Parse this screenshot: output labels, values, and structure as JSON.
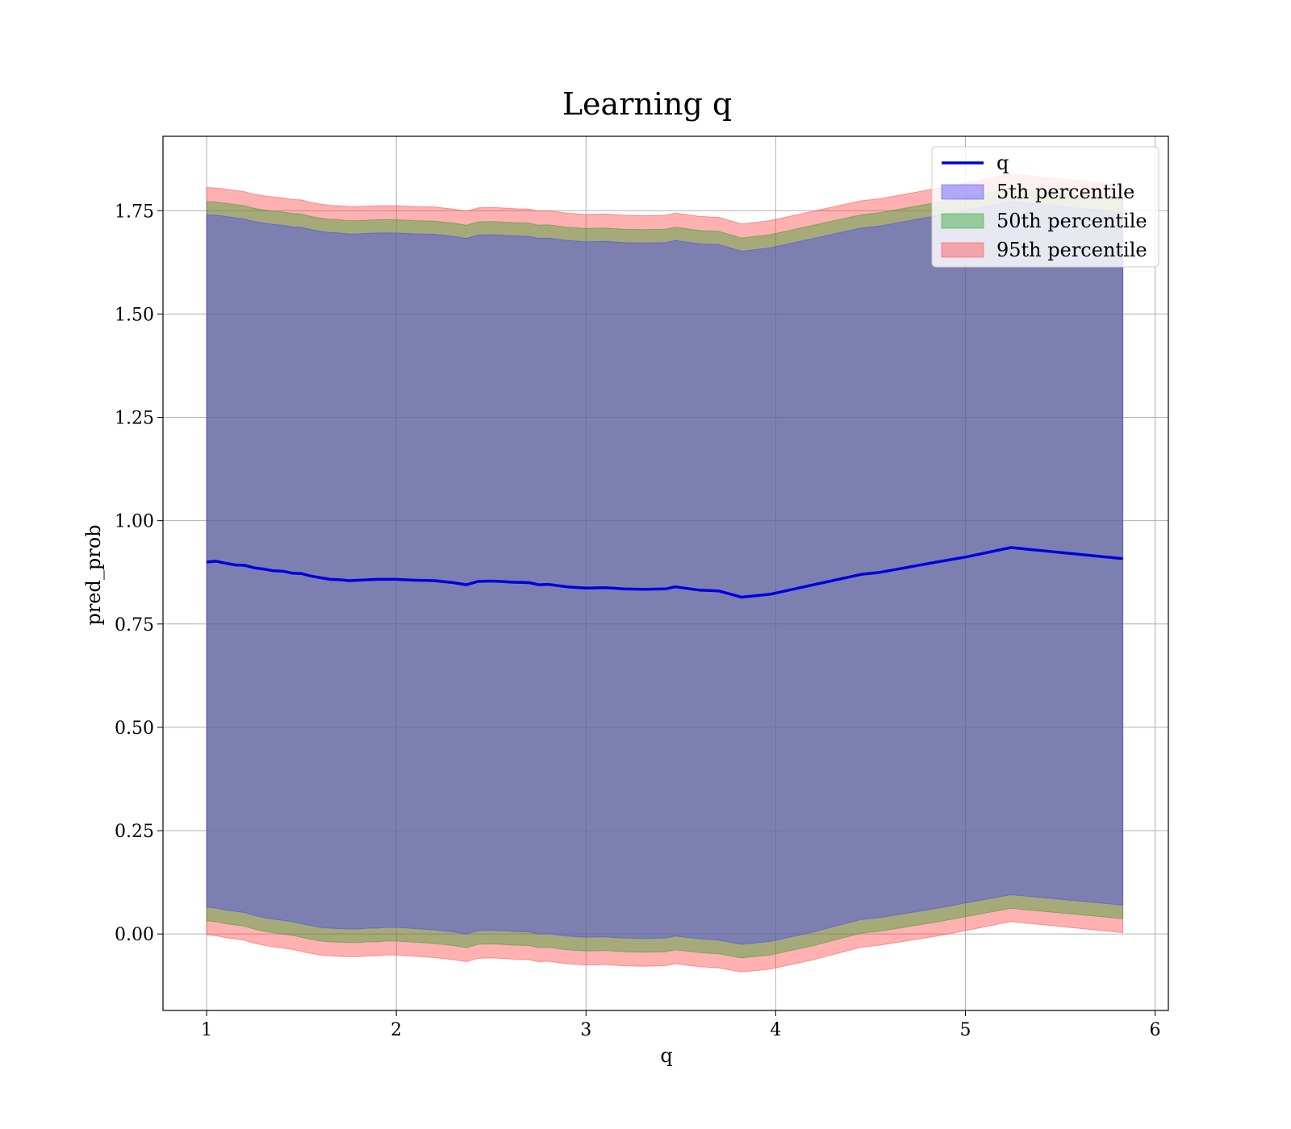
{
  "chart_data": {
    "type": "line",
    "title": "Learning q",
    "xlabel": "q",
    "ylabel": "pred_prob",
    "xlim": [
      0.77,
      6.07
    ],
    "ylim": [
      -0.185,
      1.93
    ],
    "xticks": [
      1,
      2,
      3,
      4,
      5,
      6
    ],
    "yticks": [
      0.0,
      0.25,
      0.5,
      0.75,
      1.0,
      1.25,
      1.5,
      1.75
    ],
    "xtick_labels": [
      "1",
      "2",
      "3",
      "4",
      "5",
      "6"
    ],
    "ytick_labels": [
      "0.00",
      "0.25",
      "0.50",
      "0.75",
      "1.00",
      "1.25",
      "1.50",
      "1.75"
    ],
    "grid": true,
    "legend_position": "top-right",
    "x": [
      1.0,
      1.05,
      1.1,
      1.15,
      1.2,
      1.25,
      1.3,
      1.35,
      1.4,
      1.45,
      1.5,
      1.55,
      1.6,
      1.65,
      1.7,
      1.75,
      1.8,
      1.85,
      1.9,
      1.95,
      2.0,
      2.1,
      2.2,
      2.3,
      2.37,
      2.43,
      2.5,
      2.55,
      2.62,
      2.7,
      2.75,
      2.8,
      2.9,
      3.0,
      3.1,
      3.2,
      3.3,
      3.42,
      3.47,
      3.6,
      3.7,
      3.82,
      3.97,
      4.2,
      4.45,
      4.55,
      4.85,
      5.0,
      5.24,
      5.83
    ],
    "series": [
      {
        "name": "q",
        "kind": "line",
        "color": "#0000dd",
        "values": [
          0.9,
          0.902,
          0.897,
          0.893,
          0.892,
          0.886,
          0.883,
          0.879,
          0.878,
          0.873,
          0.872,
          0.866,
          0.862,
          0.858,
          0.857,
          0.855,
          0.856,
          0.857,
          0.858,
          0.858,
          0.858,
          0.856,
          0.855,
          0.85,
          0.845,
          0.853,
          0.854,
          0.853,
          0.851,
          0.85,
          0.845,
          0.846,
          0.84,
          0.837,
          0.838,
          0.835,
          0.834,
          0.835,
          0.84,
          0.832,
          0.83,
          0.815,
          0.822,
          0.845,
          0.87,
          0.875,
          0.9,
          0.912,
          0.935,
          0.908
        ]
      },
      {
        "name": "5th percentile",
        "kind": "band",
        "color": "#4444ff",
        "lower": [
          0.065,
          0.063,
          0.058,
          0.055,
          0.052,
          0.045,
          0.04,
          0.036,
          0.033,
          0.03,
          0.025,
          0.02,
          0.016,
          0.014,
          0.013,
          0.012,
          0.012,
          0.014,
          0.014,
          0.016,
          0.016,
          0.013,
          0.01,
          0.005,
          0.0,
          0.008,
          0.009,
          0.008,
          0.006,
          0.005,
          0.0,
          0.001,
          -0.005,
          -0.008,
          -0.007,
          -0.01,
          -0.011,
          -0.01,
          -0.005,
          -0.012,
          -0.015,
          -0.025,
          -0.018,
          0.005,
          0.035,
          0.04,
          0.062,
          0.075,
          0.095,
          0.07
        ],
        "upper": [
          1.74,
          1.739,
          1.736,
          1.733,
          1.73,
          1.724,
          1.72,
          1.717,
          1.715,
          1.711,
          1.71,
          1.704,
          1.7,
          1.697,
          1.696,
          1.694,
          1.694,
          1.695,
          1.696,
          1.696,
          1.696,
          1.694,
          1.693,
          1.688,
          1.683,
          1.691,
          1.692,
          1.691,
          1.689,
          1.688,
          1.683,
          1.684,
          1.678,
          1.675,
          1.676,
          1.673,
          1.672,
          1.673,
          1.678,
          1.67,
          1.668,
          1.652,
          1.66,
          1.683,
          1.708,
          1.713,
          1.738,
          1.75,
          1.773,
          1.745
        ]
      },
      {
        "name": "50th percentile",
        "kind": "band",
        "color": "#2ca02c",
        "lower": [
          0.032,
          0.03,
          0.025,
          0.022,
          0.019,
          0.012,
          0.007,
          0.003,
          0.0,
          -0.003,
          -0.008,
          -0.013,
          -0.017,
          -0.019,
          -0.02,
          -0.021,
          -0.021,
          -0.019,
          -0.019,
          -0.017,
          -0.017,
          -0.02,
          -0.023,
          -0.028,
          -0.033,
          -0.025,
          -0.024,
          -0.025,
          -0.027,
          -0.028,
          -0.033,
          -0.032,
          -0.038,
          -0.041,
          -0.04,
          -0.043,
          -0.044,
          -0.043,
          -0.038,
          -0.045,
          -0.048,
          -0.058,
          -0.051,
          -0.028,
          0.002,
          0.007,
          0.029,
          0.042,
          0.062,
          0.037
        ],
        "upper": [
          1.772,
          1.771,
          1.768,
          1.765,
          1.762,
          1.756,
          1.752,
          1.749,
          1.747,
          1.743,
          1.742,
          1.736,
          1.732,
          1.729,
          1.728,
          1.726,
          1.726,
          1.727,
          1.728,
          1.728,
          1.728,
          1.726,
          1.725,
          1.72,
          1.715,
          1.723,
          1.724,
          1.723,
          1.721,
          1.72,
          1.715,
          1.716,
          1.71,
          1.707,
          1.708,
          1.705,
          1.704,
          1.705,
          1.71,
          1.702,
          1.7,
          1.684,
          1.692,
          1.715,
          1.74,
          1.745,
          1.77,
          1.782,
          1.805,
          1.777
        ]
      },
      {
        "name": "95th percentile",
        "kind": "band",
        "color": "#ff4444",
        "lower": [
          -0.002,
          -0.004,
          -0.009,
          -0.012,
          -0.015,
          -0.022,
          -0.027,
          -0.031,
          -0.034,
          -0.037,
          -0.042,
          -0.047,
          -0.051,
          -0.053,
          -0.054,
          -0.055,
          -0.055,
          -0.053,
          -0.053,
          -0.051,
          -0.051,
          -0.054,
          -0.057,
          -0.062,
          -0.067,
          -0.059,
          -0.058,
          -0.059,
          -0.061,
          -0.062,
          -0.067,
          -0.066,
          -0.072,
          -0.075,
          -0.074,
          -0.077,
          -0.078,
          -0.077,
          -0.072,
          -0.079,
          -0.082,
          -0.092,
          -0.085,
          -0.062,
          -0.032,
          -0.027,
          -0.005,
          0.008,
          0.03,
          0.003
        ],
        "upper": [
          1.806,
          1.805,
          1.802,
          1.799,
          1.796,
          1.79,
          1.786,
          1.783,
          1.781,
          1.777,
          1.776,
          1.77,
          1.766,
          1.763,
          1.762,
          1.76,
          1.76,
          1.761,
          1.762,
          1.762,
          1.762,
          1.76,
          1.759,
          1.754,
          1.749,
          1.757,
          1.758,
          1.757,
          1.755,
          1.754,
          1.749,
          1.75,
          1.744,
          1.741,
          1.742,
          1.739,
          1.738,
          1.739,
          1.744,
          1.736,
          1.734,
          1.718,
          1.726,
          1.749,
          1.774,
          1.779,
          1.804,
          1.816,
          1.839,
          1.811
        ]
      }
    ]
  }
}
